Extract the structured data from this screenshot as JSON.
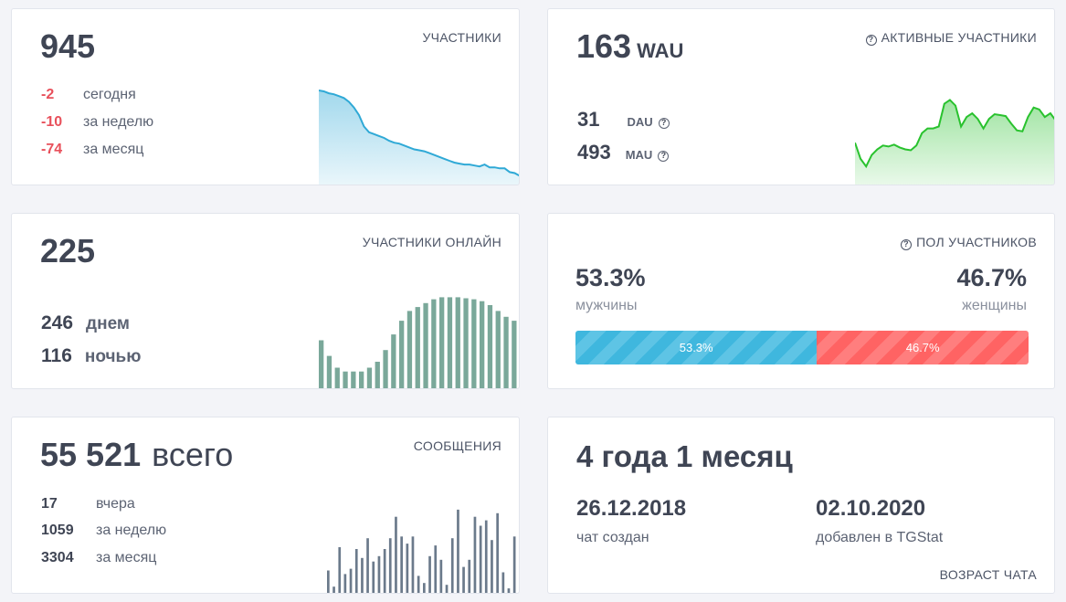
{
  "members": {
    "title": "УЧАСТНИКИ",
    "count": "945",
    "rows": [
      {
        "value": "-2",
        "label": "сегодня"
      },
      {
        "value": "-10",
        "label": "за неделю"
      },
      {
        "value": "-74",
        "label": "за месяц"
      }
    ],
    "trend": [
      100,
      99,
      97,
      96,
      94,
      92,
      88,
      82,
      74,
      62,
      56,
      54,
      52,
      50,
      47,
      45,
      44,
      42,
      40,
      38,
      37,
      36,
      34,
      32,
      30,
      28,
      26,
      24,
      23,
      22,
      22,
      21,
      20,
      22,
      19,
      19,
      18,
      18,
      14,
      13,
      10
    ],
    "color": "#2fa9d6"
  },
  "active": {
    "title": "АКТИВНЫЕ УЧАСТНИКИ",
    "count": "163",
    "suffix": "WAU",
    "dau_value": "31",
    "dau_label": "DAU",
    "mau_value": "493",
    "mau_label": "MAU",
    "trend": [
      45,
      28,
      20,
      32,
      38,
      42,
      41,
      43,
      40,
      38,
      37,
      42,
      55,
      60,
      60,
      62,
      86,
      90,
      84,
      62,
      72,
      76,
      70,
      60,
      70,
      75,
      74,
      73,
      65,
      58,
      57,
      72,
      82,
      80,
      72,
      76,
      68
    ],
    "color": "#29c22e"
  },
  "online": {
    "title": "УЧАСТНИКИ ОНЛАЙН",
    "count": "225",
    "day_value": "246",
    "day_label": "днем",
    "night_value": "116",
    "night_label": "ночью",
    "bars": [
      50,
      34,
      22,
      18,
      18,
      18,
      22,
      28,
      40,
      56,
      70,
      80,
      84,
      88,
      92,
      94,
      94,
      94,
      93,
      92,
      90,
      86,
      80,
      74,
      70
    ],
    "color": "#7aa89a"
  },
  "gender": {
    "title": "ПОЛ УЧАСТНИКОВ",
    "male_pct": "53.3%",
    "male_label": "мужчины",
    "female_pct": "46.7%",
    "female_label": "женщины",
    "male_share": 0.533,
    "male_bar_label": "53.3%",
    "female_bar_label": "46.7%"
  },
  "messages": {
    "title": "СООБЩЕНИЯ",
    "total": "55 521",
    "total_suffix": "всего",
    "rows": [
      {
        "value": "17",
        "label": "вчера"
      },
      {
        "value": "1059",
        "label": "за неделю"
      },
      {
        "value": "3304",
        "label": "за месяц"
      }
    ],
    "bars": [
      26,
      8,
      52,
      22,
      28,
      50,
      40,
      62,
      36,
      42,
      50,
      62,
      86,
      64,
      56,
      64,
      20,
      12,
      42,
      54,
      38,
      10,
      62,
      94,
      30,
      38,
      86,
      76,
      82,
      60,
      90,
      24,
      6,
      64
    ],
    "color": "#6b7a8b"
  },
  "age": {
    "headline": "4 года 1 месяц",
    "created_date": "26.12.2018",
    "created_label": "чат создан",
    "added_date": "02.10.2020",
    "added_label": "добавлен в TGStat",
    "caption": "ВОЗРАСТ ЧАТА"
  }
}
